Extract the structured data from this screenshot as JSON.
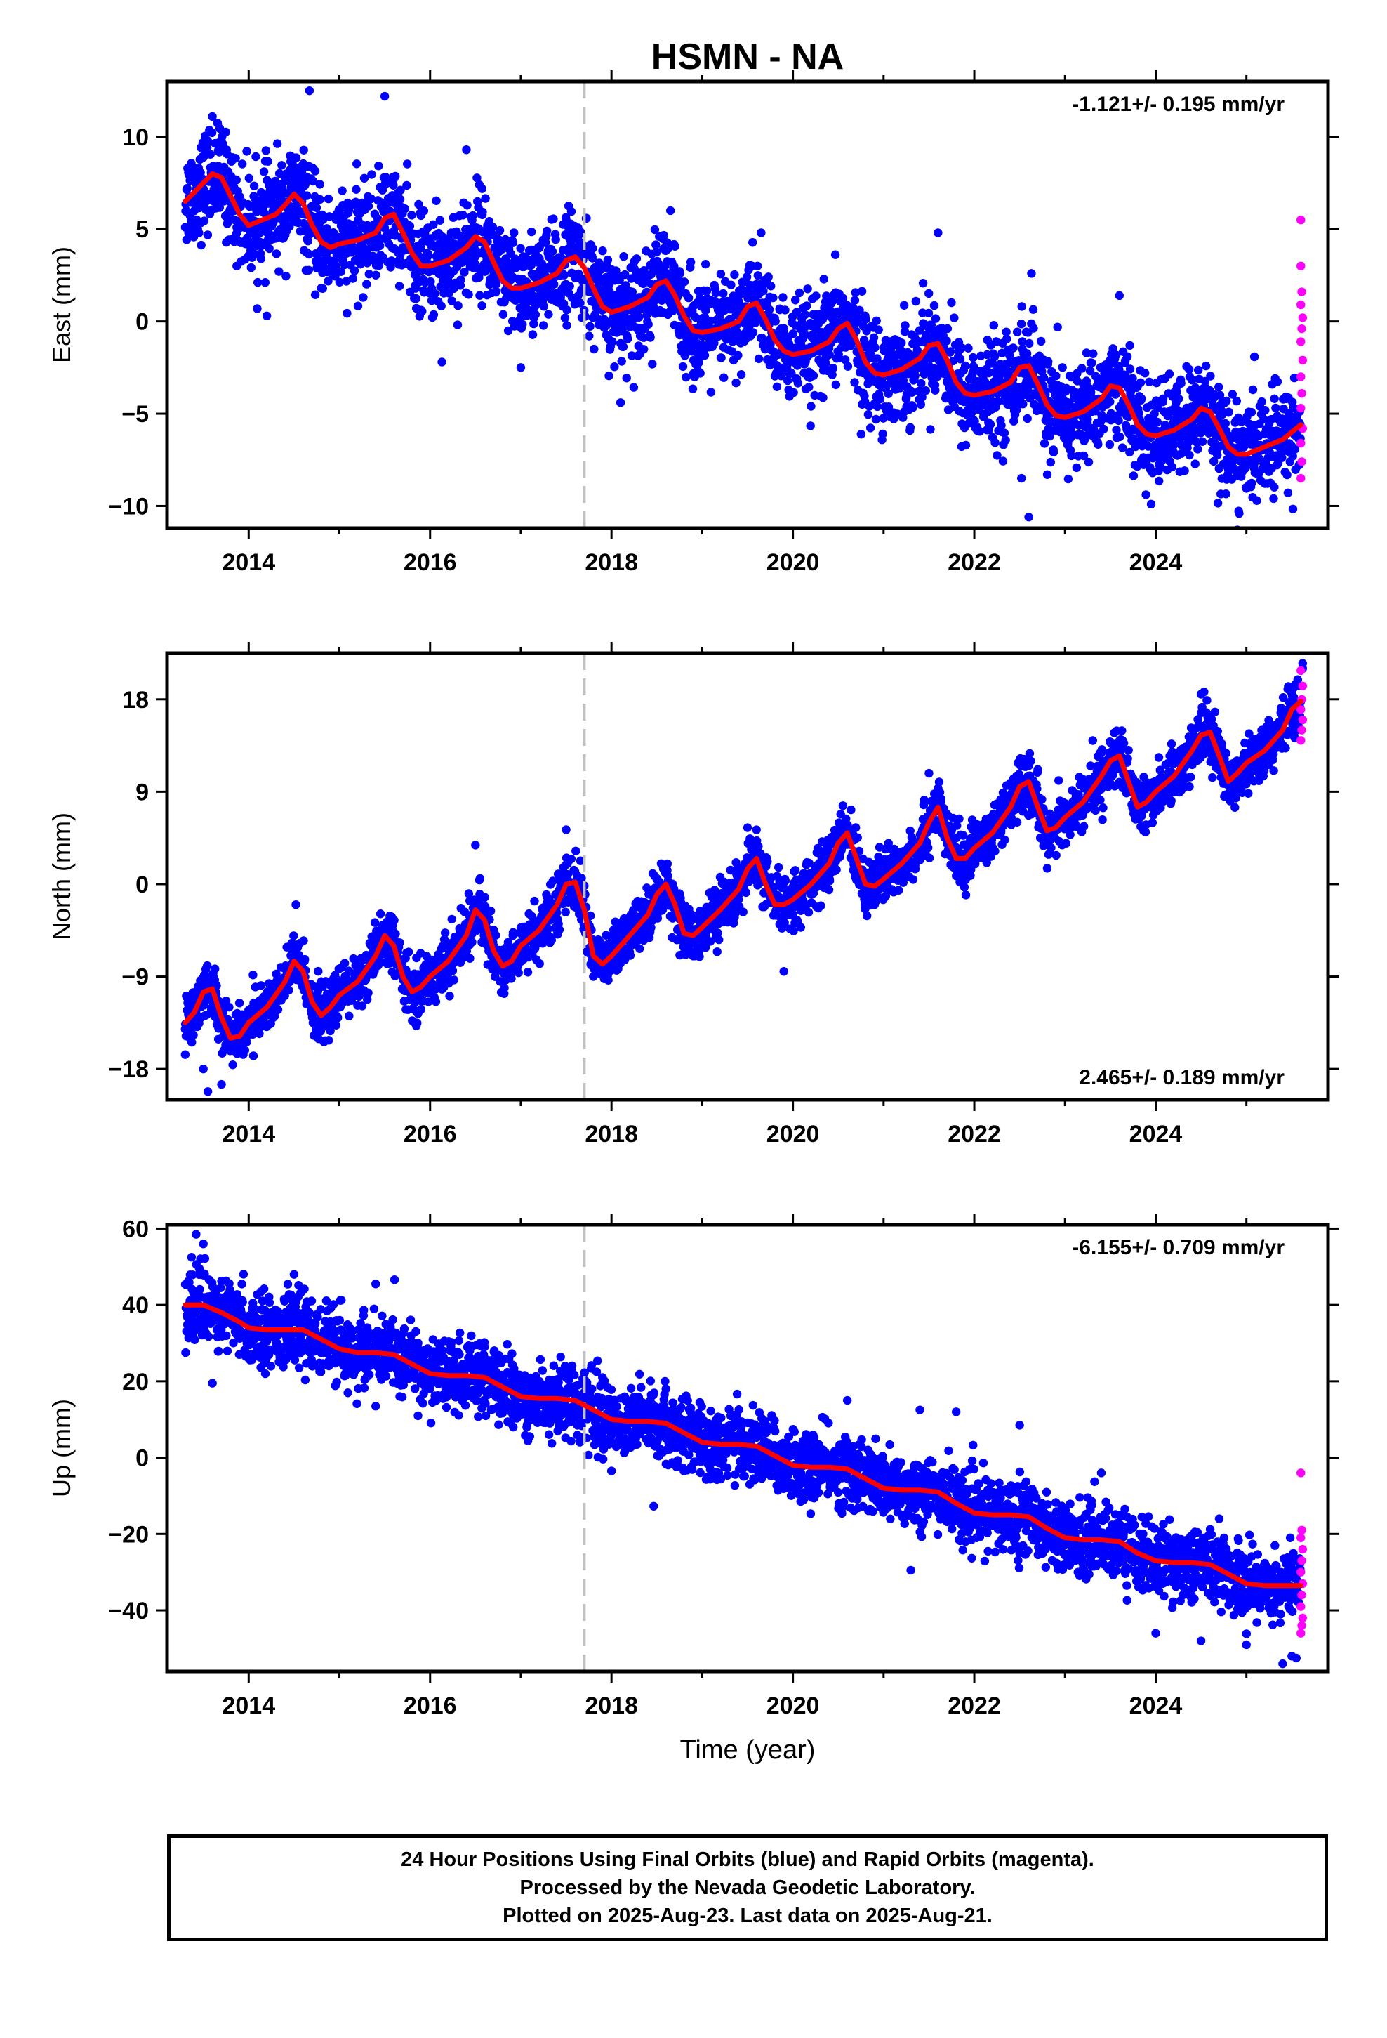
{
  "title": "HSMN - NA",
  "colors": {
    "final_orbits": "#0000ff",
    "rapid_orbits": "#ff00ff",
    "model": "#ff0000",
    "marker_line": "#c0c0c0",
    "frame": "#000000"
  },
  "chart_data": [
    {
      "type": "scatter",
      "name": "east",
      "ylabel": "East (mm)",
      "xlabel": "",
      "xlim": [
        2013.1,
        2025.9
      ],
      "ylim": [
        -11.2,
        13.0
      ],
      "xticks": [
        2014,
        2016,
        2018,
        2020,
        2022,
        2024
      ],
      "yticks": [
        -10,
        -5,
        0,
        5,
        10
      ],
      "tick_labels": [
        "−10",
        "−5",
        "0",
        "5",
        "10"
      ],
      "velocity_label": "-1.121+/- 0.195 mm/yr",
      "velocity_position": "top-right",
      "equipment_change_year": 2017.7,
      "model": {
        "x": [
          2013.3,
          2013.4,
          2013.5,
          2013.6,
          2013.7,
          2013.8,
          2013.9,
          2014.0,
          2014.1,
          2014.2,
          2014.3,
          2014.4,
          2014.5,
          2014.6,
          2014.7,
          2014.8,
          2014.9,
          2015.0,
          2015.2,
          2015.4,
          2015.5,
          2015.6,
          2015.7,
          2015.8,
          2015.9,
          2016.0,
          2016.2,
          2016.4,
          2016.5,
          2016.6,
          2016.7,
          2016.8,
          2016.9,
          2017.0,
          2017.2,
          2017.4,
          2017.5,
          2017.6,
          2017.7,
          2017.8,
          2017.9,
          2018.0,
          2018.2,
          2018.4,
          2018.5,
          2018.6,
          2018.7,
          2018.8,
          2018.9,
          2019.0,
          2019.2,
          2019.4,
          2019.5,
          2019.6,
          2019.7,
          2019.8,
          2019.9,
          2020.0,
          2020.2,
          2020.4,
          2020.5,
          2020.6,
          2020.7,
          2020.8,
          2020.9,
          2021.0,
          2021.2,
          2021.4,
          2021.5,
          2021.6,
          2021.7,
          2021.8,
          2021.9,
          2022.0,
          2022.2,
          2022.4,
          2022.5,
          2022.6,
          2022.7,
          2022.8,
          2022.9,
          2023.0,
          2023.2,
          2023.4,
          2023.5,
          2023.6,
          2023.7,
          2023.8,
          2023.9,
          2024.0,
          2024.2,
          2024.4,
          2024.5,
          2024.6,
          2024.7,
          2024.8,
          2024.9,
          2025.0,
          2025.2,
          2025.4,
          2025.5,
          2025.6
        ],
        "y": [
          6.5,
          7.0,
          7.5,
          8.0,
          7.8,
          6.8,
          5.8,
          5.2,
          5.4,
          5.6,
          5.8,
          6.3,
          6.9,
          6.4,
          5.2,
          4.3,
          4.0,
          4.2,
          4.4,
          4.8,
          5.6,
          5.8,
          4.8,
          3.7,
          3.0,
          3.0,
          3.3,
          4.0,
          4.6,
          4.3,
          3.2,
          2.2,
          1.8,
          1.8,
          2.1,
          2.6,
          3.3,
          3.5,
          2.9,
          1.8,
          0.8,
          0.5,
          0.8,
          1.3,
          2.0,
          2.2,
          1.4,
          0.3,
          -0.5,
          -0.6,
          -0.4,
          0.0,
          0.8,
          1.0,
          0.1,
          -1.0,
          -1.6,
          -1.8,
          -1.6,
          -1.1,
          -0.4,
          -0.1,
          -1.0,
          -2.2,
          -2.8,
          -2.9,
          -2.6,
          -2.0,
          -1.3,
          -1.2,
          -2.1,
          -3.3,
          -3.9,
          -4.0,
          -3.8,
          -3.3,
          -2.5,
          -2.4,
          -3.4,
          -4.5,
          -5.1,
          -5.2,
          -4.9,
          -4.2,
          -3.5,
          -3.6,
          -4.5,
          -5.6,
          -6.1,
          -6.2,
          -5.9,
          -5.3,
          -4.7,
          -4.9,
          -5.8,
          -6.8,
          -7.2,
          -7.2,
          -6.8,
          -6.4,
          -6.0,
          -5.6
        ]
      },
      "outliers_high": [
        [
          2013.6,
          11.1
        ],
        [
          2014.67,
          12.5
        ],
        [
          2015.5,
          12.2
        ],
        [
          2016.4,
          9.3
        ],
        [
          2018.65,
          6.0
        ],
        [
          2019.65,
          4.8
        ],
        [
          2021.6,
          4.8
        ],
        [
          2022.63,
          2.6
        ],
        [
          2023.6,
          1.4
        ]
      ],
      "outliers_low": [
        [
          2014.2,
          0.3
        ],
        [
          2016.13,
          -2.2
        ],
        [
          2017.0,
          -2.5
        ],
        [
          2018.1,
          -4.4
        ],
        [
          2020.2,
          -4.6
        ],
        [
          2022.52,
          -8.5
        ],
        [
          2022.6,
          -10.6
        ],
        [
          2023.95,
          -9.9
        ],
        [
          2025.3,
          -9.6
        ]
      ],
      "rapid_points": [
        [
          2025.6,
          5.5
        ],
        [
          2025.6,
          3.0
        ],
        [
          2025.61,
          1.6
        ],
        [
          2025.6,
          0.9
        ],
        [
          2025.62,
          0.2
        ],
        [
          2025.61,
          -0.4
        ],
        [
          2025.6,
          -1.1
        ],
        [
          2025.62,
          -2.1
        ],
        [
          2025.6,
          -3.0
        ],
        [
          2025.61,
          -3.9
        ],
        [
          2025.6,
          -4.7
        ],
        [
          2025.62,
          -5.8
        ],
        [
          2025.6,
          -6.6
        ],
        [
          2025.61,
          -7.6
        ],
        [
          2025.6,
          -8.5
        ]
      ]
    },
    {
      "type": "scatter",
      "name": "north",
      "ylabel": "North (mm)",
      "xlabel": "",
      "xlim": [
        2013.1,
        2025.9
      ],
      "ylim": [
        -21,
        22.5
      ],
      "xticks": [
        2014,
        2016,
        2018,
        2020,
        2022,
        2024
      ],
      "yticks": [
        -18,
        -9,
        0,
        9,
        18
      ],
      "tick_labels": [
        "−18",
        "−9",
        "0",
        "9",
        "18"
      ],
      "velocity_label": "2.465+/- 0.189 mm/yr",
      "velocity_position": "bottom-right",
      "equipment_change_year": 2017.7,
      "model": {
        "x": [
          2013.3,
          2013.4,
          2013.5,
          2013.6,
          2013.7,
          2013.8,
          2013.9,
          2014.0,
          2014.2,
          2014.4,
          2014.5,
          2014.6,
          2014.7,
          2014.8,
          2014.9,
          2015.0,
          2015.2,
          2015.4,
          2015.5,
          2015.6,
          2015.7,
          2015.8,
          2015.9,
          2016.0,
          2016.2,
          2016.4,
          2016.5,
          2016.6,
          2016.7,
          2016.8,
          2016.9,
          2017.0,
          2017.2,
          2017.4,
          2017.5,
          2017.6,
          2017.7,
          2017.8,
          2017.9,
          2018.0,
          2018.2,
          2018.4,
          2018.5,
          2018.6,
          2018.7,
          2018.8,
          2018.9,
          2019.0,
          2019.2,
          2019.4,
          2019.5,
          2019.6,
          2019.7,
          2019.8,
          2019.9,
          2020.0,
          2020.2,
          2020.4,
          2020.5,
          2020.6,
          2020.7,
          2020.8,
          2020.9,
          2021.0,
          2021.2,
          2021.4,
          2021.5,
          2021.6,
          2021.7,
          2021.8,
          2021.9,
          2022.0,
          2022.2,
          2022.4,
          2022.5,
          2022.6,
          2022.7,
          2022.8,
          2022.9,
          2023.0,
          2023.2,
          2023.4,
          2023.5,
          2023.6,
          2023.7,
          2023.8,
          2023.9,
          2024.0,
          2024.2,
          2024.4,
          2024.5,
          2024.6,
          2024.7,
          2024.8,
          2024.9,
          2025.0,
          2025.2,
          2025.4,
          2025.5,
          2025.6
        ],
        "y": [
          -13.5,
          -12.5,
          -10.5,
          -10.2,
          -13.0,
          -15.0,
          -14.8,
          -13.5,
          -12.0,
          -9.5,
          -7.5,
          -8.5,
          -11.5,
          -12.8,
          -12.0,
          -10.8,
          -9.5,
          -7.0,
          -5.0,
          -6.0,
          -9.0,
          -10.5,
          -10.0,
          -9.0,
          -7.5,
          -5.0,
          -2.5,
          -3.5,
          -6.5,
          -8.0,
          -7.5,
          -6.0,
          -4.5,
          -2.0,
          0.0,
          0.2,
          -2.5,
          -7.0,
          -7.8,
          -7.0,
          -5.0,
          -3.0,
          -1.0,
          0.0,
          -2.0,
          -4.8,
          -5.0,
          -4.2,
          -2.5,
          -0.5,
          1.5,
          2.5,
          0.0,
          -2.0,
          -2.0,
          -1.5,
          0.0,
          2.0,
          4.0,
          5.0,
          2.5,
          0.0,
          -0.2,
          0.5,
          2.0,
          4.0,
          6.0,
          7.5,
          4.5,
          2.5,
          2.5,
          3.5,
          5.0,
          7.5,
          9.5,
          10.0,
          7.5,
          5.2,
          5.5,
          6.5,
          8.0,
          10.5,
          12.0,
          12.5,
          10.0,
          7.5,
          8.0,
          9.0,
          10.5,
          13.0,
          14.5,
          14.8,
          12.5,
          10.0,
          10.8,
          11.8,
          13.0,
          15.0,
          17.0,
          17.8
        ]
      },
      "outliers_high": [
        [
          2014.52,
          -2.0
        ],
        [
          2016.5,
          3.8
        ],
        [
          2017.5,
          5.3
        ],
        [
          2019.5,
          5.5
        ],
        [
          2021.5,
          10.8
        ],
        [
          2022.5,
          12.0
        ],
        [
          2023.5,
          13.8
        ],
        [
          2024.5,
          18.5
        ],
        [
          2025.62,
          21.0
        ],
        [
          2025.62,
          21.5
        ]
      ],
      "outliers_low": [
        [
          2013.3,
          -16.6
        ],
        [
          2013.5,
          -18.0
        ],
        [
          2013.55,
          -20.2
        ],
        [
          2013.7,
          -19.5
        ],
        [
          2014.9,
          -14.3
        ],
        [
          2015.9,
          -12.2
        ],
        [
          2017.8,
          -9.0
        ],
        [
          2018.9,
          -7.0
        ],
        [
          2019.9,
          -8.5
        ],
        [
          2020.9,
          -2.0
        ],
        [
          2021.8,
          0.8
        ]
      ],
      "rapid_points": [
        [
          2025.6,
          20.8
        ],
        [
          2025.62,
          19.3
        ],
        [
          2025.61,
          18.0
        ],
        [
          2025.6,
          17.0
        ],
        [
          2025.62,
          16.0
        ],
        [
          2025.61,
          15.0
        ],
        [
          2025.6,
          14.0
        ]
      ]
    },
    {
      "type": "scatter",
      "name": "up",
      "ylabel": "Up (mm)",
      "xlabel": "Time (year)",
      "xlim": [
        2013.1,
        2025.9
      ],
      "ylim": [
        -56,
        61
      ],
      "xticks": [
        2014,
        2016,
        2018,
        2020,
        2022,
        2024
      ],
      "yticks": [
        -40,
        -20,
        0,
        20,
        40,
        60
      ],
      "tick_labels": [
        "−40",
        "−20",
        "0",
        "20",
        "40",
        "60"
      ],
      "velocity_label": "-6.155+/- 0.709 mm/yr",
      "velocity_position": "top-right",
      "equipment_change_year": 2017.7,
      "model": {
        "x": [
          2013.3,
          2013.5,
          2013.7,
          2013.9,
          2014.0,
          2014.2,
          2014.4,
          2014.6,
          2014.8,
          2015.0,
          2015.2,
          2015.4,
          2015.6,
          2015.8,
          2016.0,
          2016.2,
          2016.4,
          2016.6,
          2016.8,
          2017.0,
          2017.2,
          2017.4,
          2017.6,
          2017.8,
          2018.0,
          2018.2,
          2018.4,
          2018.6,
          2018.8,
          2019.0,
          2019.2,
          2019.4,
          2019.6,
          2019.8,
          2020.0,
          2020.2,
          2020.4,
          2020.6,
          2020.8,
          2021.0,
          2021.2,
          2021.4,
          2021.6,
          2021.8,
          2022.0,
          2022.2,
          2022.4,
          2022.6,
          2022.8,
          2023.0,
          2023.2,
          2023.4,
          2023.6,
          2023.8,
          2024.0,
          2024.2,
          2024.4,
          2024.6,
          2024.8,
          2025.0,
          2025.2,
          2025.4,
          2025.6
        ],
        "y": [
          40,
          40,
          38,
          35.5,
          34,
          33.5,
          33.5,
          33.5,
          31,
          28.5,
          27.5,
          27.5,
          27,
          24.5,
          22,
          21.5,
          21.5,
          21,
          18.5,
          16,
          15.5,
          15.5,
          15,
          12.5,
          10,
          9.5,
          9.5,
          9,
          6.5,
          4,
          3.5,
          3.5,
          3,
          0.5,
          -2,
          -2.5,
          -2.5,
          -3,
          -5.5,
          -8,
          -8.5,
          -8.5,
          -9,
          -12,
          -14.5,
          -15,
          -15,
          -15.5,
          -18.5,
          -21,
          -21.5,
          -21.5,
          -22,
          -25,
          -27,
          -27.5,
          -27.5,
          -28,
          -30.5,
          -33,
          -33.5,
          -33.5,
          -33.5
        ]
      },
      "outliers_high": [
        [
          2013.42,
          58.5
        ],
        [
          2013.5,
          56.0
        ],
        [
          2014.5,
          48.0
        ],
        [
          2015.4,
          45.5
        ],
        [
          2016.6,
          29.0
        ],
        [
          2017.9,
          21.0
        ],
        [
          2018.6,
          18.0
        ],
        [
          2020.6,
          15.0
        ],
        [
          2021.4,
          12.5
        ],
        [
          2021.8,
          12.0
        ],
        [
          2022.5,
          8.5
        ],
        [
          2023.4,
          -4.0
        ],
        [
          2024.7,
          -16.0
        ]
      ],
      "outliers_low": [
        [
          2013.6,
          19.5
        ],
        [
          2015.4,
          13.5
        ],
        [
          2018.0,
          -3.5
        ],
        [
          2021.3,
          -29.5
        ],
        [
          2022.5,
          -25.0
        ],
        [
          2024.0,
          -46.0
        ],
        [
          2024.5,
          -48.0
        ],
        [
          2025.0,
          -49.0
        ],
        [
          2025.4,
          -54.0
        ],
        [
          2025.5,
          -52.0
        ],
        [
          2025.55,
          -52.5
        ]
      ],
      "rapid_points": [
        [
          2025.6,
          -4.0
        ],
        [
          2025.61,
          -19.0
        ],
        [
          2025.6,
          -21.0
        ],
        [
          2025.62,
          -24.0
        ],
        [
          2025.61,
          -27.0
        ],
        [
          2025.6,
          -30.0
        ],
        [
          2025.62,
          -33.0
        ],
        [
          2025.61,
          -36.0
        ],
        [
          2025.6,
          -39.0
        ],
        [
          2025.62,
          -42.0
        ],
        [
          2025.61,
          -44.0
        ],
        [
          2025.6,
          -46.0
        ]
      ]
    }
  ],
  "caption": {
    "line1": "24 Hour Positions Using Final Orbits (blue) and Rapid Orbits (magenta).",
    "line2": "Processed by the Nevada Geodetic Laboratory.",
    "line3": "Plotted on 2025-Aug-23. Last data on 2025-Aug-21."
  }
}
